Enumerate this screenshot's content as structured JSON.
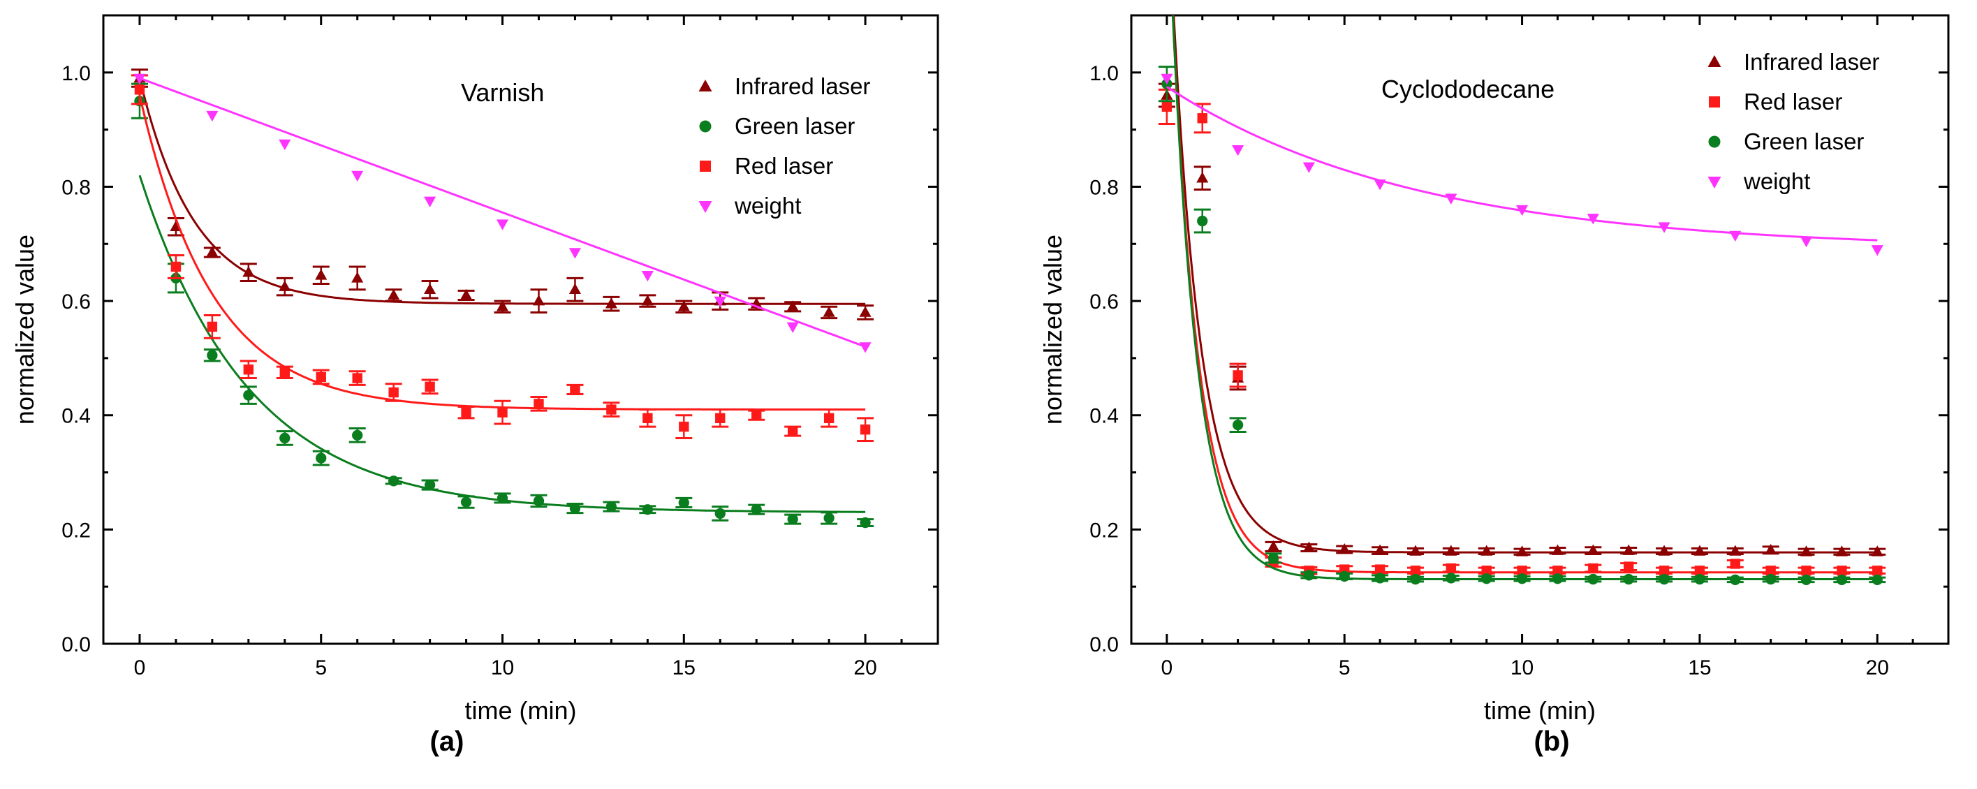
{
  "chart_data": [
    {
      "type": "scatter",
      "panel_label": "(a)",
      "title": "Varnish",
      "xlabel": "time (min)",
      "ylabel": "normalized value",
      "xlim": [
        -1,
        22
      ],
      "ylim": [
        0.0,
        1.1
      ],
      "xticks": [
        "0",
        "5",
        "10",
        "15",
        "20"
      ],
      "yticks": [
        "0.0",
        "0.2",
        "0.4",
        "0.6",
        "0.8",
        "1.0"
      ],
      "legend_position": "top-right",
      "series": [
        {
          "name": "Infrared laser",
          "color": "#8b0000",
          "marker": "triangle-up",
          "x": [
            0,
            1,
            2,
            3,
            4,
            5,
            6,
            7,
            8,
            9,
            10,
            11,
            12,
            13,
            14,
            15,
            16,
            17,
            18,
            19,
            20
          ],
          "y": [
            0.99,
            0.73,
            0.685,
            0.65,
            0.625,
            0.645,
            0.64,
            0.61,
            0.62,
            0.61,
            0.59,
            0.6,
            0.62,
            0.595,
            0.6,
            0.59,
            0.6,
            0.595,
            0.59,
            0.58,
            0.58
          ],
          "err": [
            0.015,
            0.015,
            0.008,
            0.015,
            0.015,
            0.015,
            0.02,
            0.01,
            0.015,
            0.008,
            0.01,
            0.02,
            0.02,
            0.012,
            0.01,
            0.01,
            0.015,
            0.01,
            0.008,
            0.01,
            0.012
          ],
          "fit": {
            "a": 0.595,
            "b": 0.395,
            "tau": 1.5
          }
        },
        {
          "name": "Green laser",
          "color": "#0a7d1e",
          "marker": "circle",
          "x": [
            0,
            1,
            2,
            3,
            4,
            5,
            6,
            7,
            8,
            9,
            10,
            11,
            12,
            13,
            14,
            15,
            16,
            17,
            18,
            19,
            20
          ],
          "y": [
            0.95,
            0.64,
            0.505,
            0.435,
            0.36,
            0.325,
            0.365,
            0.285,
            0.278,
            0.248,
            0.255,
            0.25,
            0.237,
            0.24,
            0.235,
            0.247,
            0.228,
            0.235,
            0.218,
            0.22,
            0.212
          ],
          "err": [
            0.03,
            0.025,
            0.01,
            0.015,
            0.012,
            0.012,
            0.012,
            0.005,
            0.008,
            0.01,
            0.008,
            0.01,
            0.008,
            0.008,
            0.006,
            0.008,
            0.012,
            0.008,
            0.008,
            0.01,
            0.006
          ],
          "fit": {
            "a": 0.23,
            "b": 0.59,
            "tau": 3.0
          }
        },
        {
          "name": "Red laser",
          "color": "#ff1a1a",
          "marker": "square",
          "x": [
            0,
            1,
            2,
            3,
            4,
            5,
            6,
            7,
            8,
            9,
            10,
            11,
            12,
            13,
            14,
            15,
            16,
            17,
            18,
            19,
            20
          ],
          "y": [
            0.97,
            0.66,
            0.555,
            0.48,
            0.475,
            0.467,
            0.465,
            0.44,
            0.45,
            0.405,
            0.405,
            0.42,
            0.445,
            0.41,
            0.395,
            0.38,
            0.395,
            0.4,
            0.372,
            0.395,
            0.375
          ],
          "err": [
            0.025,
            0.02,
            0.02,
            0.015,
            0.01,
            0.012,
            0.012,
            0.015,
            0.012,
            0.01,
            0.02,
            0.012,
            0.008,
            0.012,
            0.015,
            0.02,
            0.015,
            0.008,
            0.008,
            0.015,
            0.02
          ],
          "fit": {
            "a": 0.41,
            "b": 0.55,
            "tau": 2.0
          }
        },
        {
          "name": "weight",
          "color": "#ff33ff",
          "marker": "triangle-down",
          "x": [
            0,
            2,
            4,
            6,
            8,
            10,
            12,
            14,
            16,
            18,
            20
          ],
          "y": [
            0.99,
            0.925,
            0.875,
            0.82,
            0.775,
            0.735,
            0.685,
            0.645,
            0.6,
            0.555,
            0.52
          ],
          "fit": {
            "linear": true,
            "intercept": 0.99,
            "slope": -0.0235
          }
        }
      ]
    },
    {
      "type": "scatter",
      "panel_label": "(b)",
      "title": "Cyclododecane",
      "xlabel": "time (min)",
      "ylabel": "normalized value",
      "xlim": [
        -1,
        22
      ],
      "ylim": [
        0.0,
        1.1
      ],
      "xticks": [
        "0",
        "5",
        "10",
        "15",
        "20"
      ],
      "yticks": [
        "0.0",
        "0.2",
        "0.4",
        "0.6",
        "0.8",
        "1.0"
      ],
      "legend_position": "top-right",
      "series": [
        {
          "name": "Infrared laser",
          "color": "#8b0000",
          "marker": "triangle-up",
          "x": [
            0,
            1,
            2,
            3,
            4,
            5,
            6,
            7,
            8,
            9,
            10,
            11,
            12,
            13,
            14,
            15,
            16,
            17,
            18,
            19,
            20
          ],
          "y": [
            0.96,
            0.815,
            0.465,
            0.17,
            0.168,
            0.165,
            0.163,
            0.162,
            0.162,
            0.162,
            0.161,
            0.163,
            0.163,
            0.163,
            0.162,
            0.162,
            0.162,
            0.164,
            0.161,
            0.161,
            0.161
          ],
          "err": [
            0.02,
            0.02,
            0.02,
            0.008,
            0.006,
            0.006,
            0.006,
            0.005,
            0.005,
            0.005,
            0.005,
            0.005,
            0.006,
            0.005,
            0.005,
            0.005,
            0.005,
            0.006,
            0.005,
            0.005,
            0.005
          ],
          "fit": {
            "a": 0.16,
            "b": 1.2,
            "tau": 0.8
          }
        },
        {
          "name": "Red laser",
          "color": "#ff1a1a",
          "marker": "square",
          "x": [
            0,
            1,
            2,
            3,
            4,
            5,
            6,
            7,
            8,
            9,
            10,
            11,
            12,
            13,
            14,
            15,
            16,
            17,
            18,
            19,
            20
          ],
          "y": [
            0.94,
            0.92,
            0.47,
            0.143,
            0.128,
            0.13,
            0.13,
            0.128,
            0.132,
            0.128,
            0.128,
            0.128,
            0.132,
            0.135,
            0.128,
            0.128,
            0.14,
            0.128,
            0.128,
            0.128,
            0.128
          ],
          "err": [
            0.03,
            0.025,
            0.02,
            0.008,
            0.006,
            0.006,
            0.006,
            0.005,
            0.006,
            0.005,
            0.005,
            0.005,
            0.006,
            0.006,
            0.005,
            0.005,
            0.006,
            0.005,
            0.005,
            0.005,
            0.005
          ],
          "fit": {
            "a": 0.125,
            "b": 1.22,
            "tau": 0.75
          }
        },
        {
          "name": "Green laser",
          "color": "#0a7d1e",
          "marker": "circle",
          "x": [
            0,
            1,
            2,
            3,
            4,
            5,
            6,
            7,
            8,
            9,
            10,
            11,
            12,
            13,
            14,
            15,
            16,
            17,
            18,
            19,
            20
          ],
          "y": [
            0.98,
            0.74,
            0.383,
            0.15,
            0.12,
            0.118,
            0.115,
            0.113,
            0.115,
            0.114,
            0.114,
            0.114,
            0.113,
            0.113,
            0.113,
            0.113,
            0.112,
            0.113,
            0.112,
            0.112,
            0.112
          ],
          "err": [
            0.03,
            0.02,
            0.012,
            0.008,
            0.005,
            0.005,
            0.005,
            0.004,
            0.004,
            0.004,
            0.004,
            0.004,
            0.004,
            0.004,
            0.004,
            0.004,
            0.004,
            0.004,
            0.004,
            0.004,
            0.004
          ],
          "fit": {
            "a": 0.113,
            "b": 1.25,
            "tau": 0.72
          }
        },
        {
          "name": "weight",
          "color": "#ff33ff",
          "marker": "triangle-down",
          "x": [
            0,
            2,
            4,
            6,
            8,
            10,
            12,
            14,
            16,
            18,
            20
          ],
          "y": [
            0.99,
            0.865,
            0.835,
            0.805,
            0.78,
            0.76,
            0.745,
            0.73,
            0.715,
            0.705,
            0.69
          ],
          "fit": {
            "a": 0.69,
            "b": 0.285,
            "tau": 7.0
          }
        }
      ]
    }
  ]
}
